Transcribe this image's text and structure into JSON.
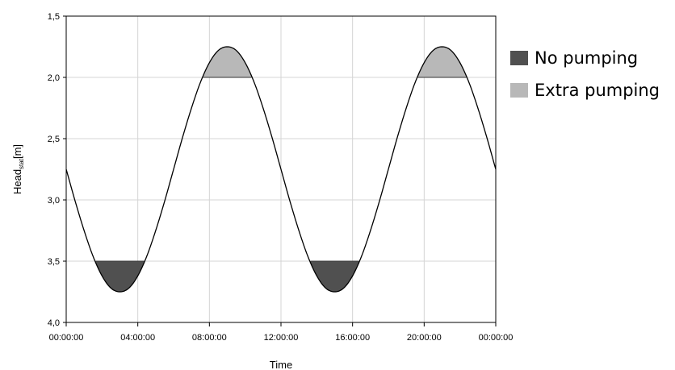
{
  "chart_data": {
    "type": "line",
    "title": "",
    "xlabel": "Time",
    "ylabel_main": "Head",
    "ylabel_sub": "stat",
    "ylabel_unit": "[m]",
    "x_tick_labels": [
      "00:00:00",
      "04:00:00",
      "08:00:00",
      "12:00:00",
      "16:00:00",
      "20:00:00",
      "00:00:00"
    ],
    "x_ticks_hours": [
      0,
      4,
      8,
      12,
      16,
      20,
      24
    ],
    "xlim_hours": [
      0,
      24
    ],
    "y_tick_labels": [
      "1,5",
      "2,0",
      "2,5",
      "3,0",
      "3,5",
      "4,0"
    ],
    "y_ticks": [
      1.5,
      2.0,
      2.5,
      3.0,
      3.5,
      4.0
    ],
    "ylim": [
      1.5,
      4.0
    ],
    "y_inverted": true,
    "grid": true,
    "legend_position": "right",
    "series": [
      {
        "x_hours": [
          0,
          0.5,
          1,
          1.5,
          2,
          2.5,
          3,
          3.5,
          4,
          4.5,
          5,
          5.5,
          6,
          6.5,
          7,
          7.5,
          8,
          8.5,
          9,
          9.5,
          10,
          10.5,
          11,
          11.5,
          12,
          12.5,
          13,
          13.5,
          14,
          14.5,
          15,
          15.5,
          16,
          16.5,
          17,
          17.5,
          18,
          18.5,
          19,
          19.5,
          20,
          20.5,
          21,
          21.5,
          22,
          22.5,
          23,
          23.5,
          24
        ],
        "values": [
          2.75,
          3.01,
          3.25,
          3.46,
          3.62,
          3.72,
          3.75,
          3.72,
          3.62,
          3.46,
          3.25,
          3.01,
          2.75,
          2.49,
          2.25,
          2.04,
          1.88,
          1.78,
          1.75,
          1.78,
          1.88,
          2.04,
          2.25,
          2.49,
          2.75,
          3.01,
          3.25,
          3.46,
          3.62,
          3.72,
          3.75,
          3.72,
          3.62,
          3.46,
          3.25,
          3.01,
          2.75,
          2.49,
          2.25,
          2.04,
          1.88,
          1.78,
          1.75,
          1.78,
          1.88,
          2.04,
          2.25,
          2.49,
          2.75
        ],
        "color": "#000000"
      }
    ],
    "shaded_regions": [
      {
        "label": "No pumping",
        "threshold": 3.5,
        "side": "deeper",
        "color": "#505050"
      },
      {
        "label": "Extra pumping",
        "threshold": 2.0,
        "side": "shallower",
        "color": "#b8b8b8"
      }
    ],
    "legend": [
      {
        "label": "No pumping",
        "color": "#505050"
      },
      {
        "label": "Extra pumping",
        "color": "#b8b8b8"
      }
    ]
  }
}
